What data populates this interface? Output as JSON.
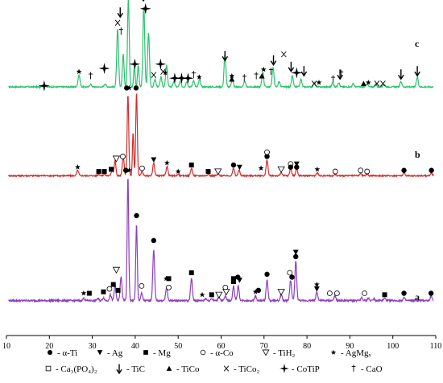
{
  "chart_data": {
    "type": "line",
    "title": "",
    "xlabel": "",
    "ylabel": "",
    "xlim": [
      10,
      110
    ],
    "x_ticks": [
      10,
      20,
      30,
      40,
      50,
      60,
      70,
      80,
      90,
      100,
      110
    ],
    "grid": false,
    "legend_position": "bottom",
    "series": [
      {
        "label": "c",
        "color": "#2bc26e",
        "baseline": 0.2,
        "noise": 0.006,
        "peaks": [
          [
            18.8,
            0.014,
            0.6
          ],
          [
            26.9,
            0.11,
            0.32
          ],
          [
            29.6,
            0.025,
            0.3
          ],
          [
            33.0,
            0.03,
            0.3
          ],
          [
            35.9,
            0.53,
            0.3
          ],
          [
            37.2,
            0.3,
            0.28
          ],
          [
            38.4,
            0.83,
            0.28
          ],
          [
            39.8,
            0.18,
            0.25
          ],
          [
            40.7,
            0.2,
            0.25
          ],
          [
            42.0,
            0.74,
            0.3
          ],
          [
            43.1,
            0.5,
            0.3
          ],
          [
            44.6,
            0.07,
            0.3
          ],
          [
            46.0,
            0.09,
            0.3
          ],
          [
            47.3,
            0.2,
            0.3
          ],
          [
            49.0,
            0.05,
            0.3
          ],
          [
            50.5,
            0.05,
            0.3
          ],
          [
            52.0,
            0.05,
            0.3
          ],
          [
            53.6,
            0.06,
            0.3
          ],
          [
            55.0,
            0.07,
            0.3
          ],
          [
            60.9,
            0.3,
            0.3
          ],
          [
            62.6,
            0.07,
            0.3
          ],
          [
            65.5,
            0.05,
            0.3
          ],
          [
            69.7,
            0.14,
            0.3
          ],
          [
            72.1,
            0.18,
            0.3
          ],
          [
            73.5,
            0.05,
            0.3
          ],
          [
            76.6,
            0.1,
            0.3
          ],
          [
            78.6,
            0.07,
            0.3
          ],
          [
            81.7,
            0.045,
            0.3
          ],
          [
            86.0,
            0.04,
            0.3
          ],
          [
            87.4,
            0.04,
            0.3
          ],
          [
            90.8,
            0.03,
            0.3
          ],
          [
            94.0,
            0.03,
            0.3
          ],
          [
            96.0,
            0.025,
            0.3
          ],
          [
            98.0,
            0.025,
            0.3
          ],
          [
            101.9,
            0.05,
            0.3
          ],
          [
            105.7,
            0.09,
            0.3
          ]
        ],
        "phase_labels": [
          [
            "crossstar",
            18.8,
            0.21
          ],
          [
            "star",
            26.9,
            0.34
          ],
          [
            "dagger",
            29.6,
            0.3
          ],
          [
            "crossstar",
            32.8,
            0.37
          ],
          [
            "X",
            35.9,
            0.79
          ],
          [
            "dagger",
            36.7,
            0.71
          ],
          [
            "arrow",
            36.5,
            0.85
          ],
          [
            "star",
            38.4,
            1.05
          ],
          [
            "crossstar",
            39.9,
            0.41
          ],
          [
            "crossstar",
            41.3,
            1.07
          ],
          [
            "arrow",
            41.9,
            1.0
          ],
          [
            "crossstar",
            42.4,
            0.92
          ],
          [
            "X",
            44.3,
            0.31
          ],
          [
            "crossstar",
            45.9,
            0.41
          ],
          [
            "X",
            46.5,
            0.34
          ],
          [
            "star",
            47.0,
            0.33
          ],
          [
            "crossstar",
            49.2,
            0.28
          ],
          [
            "crossstar",
            50.8,
            0.28
          ],
          [
            "crossstar",
            52.3,
            0.28
          ],
          [
            "dagger",
            53.6,
            0.31
          ],
          [
            "star",
            54.9,
            0.29
          ],
          [
            "arrow",
            60.9,
            0.45
          ],
          [
            "star",
            62.5,
            0.3
          ],
          [
            "triangle",
            62.5,
            0.27
          ],
          [
            "dagger",
            65.4,
            0.28
          ],
          [
            "dagger",
            68.2,
            0.3
          ],
          [
            "triangle",
            69.5,
            0.3
          ],
          [
            "star",
            69.9,
            0.36
          ],
          [
            "dagger",
            71.6,
            0.34
          ],
          [
            "arrow",
            72.2,
            0.41
          ],
          [
            "X",
            74.6,
            0.5
          ],
          [
            "arrow",
            76.3,
            0.35
          ],
          [
            "crossstar",
            77.6,
            0.33
          ],
          [
            "arrow",
            79.3,
            0.31
          ],
          [
            "X",
            81.7,
            0.23
          ],
          [
            "star",
            82.8,
            0.24
          ],
          [
            "dagger",
            86.1,
            0.27
          ],
          [
            "dagger",
            88.0,
            0.32
          ],
          [
            "arrow",
            87.7,
            0.28
          ],
          [
            "triangle",
            93.2,
            0.23
          ],
          [
            "star",
            94.3,
            0.24
          ],
          [
            "X",
            96.3,
            0.23
          ],
          [
            "X",
            97.7,
            0.23
          ],
          [
            "arrow",
            101.9,
            0.28
          ],
          [
            "arrow",
            105.7,
            0.31
          ]
        ]
      },
      {
        "label": "b",
        "color": "#d22c2c",
        "baseline": 0.2,
        "noise": 0.006,
        "peaks": [
          [
            26.6,
            0.05,
            0.32
          ],
          [
            31.5,
            0.015,
            0.3
          ],
          [
            32.8,
            0.015,
            0.3
          ],
          [
            34.6,
            0.05,
            0.3
          ],
          [
            35.3,
            0.14,
            0.28
          ],
          [
            37.2,
            0.18,
            0.3
          ],
          [
            38.3,
            0.76,
            0.26
          ],
          [
            39.5,
            0.4,
            0.22
          ],
          [
            40.3,
            0.78,
            0.26
          ],
          [
            41.6,
            0.04,
            0.3
          ],
          [
            44.3,
            0.12,
            0.3
          ],
          [
            47.4,
            0.09,
            0.3
          ],
          [
            50.0,
            0.015,
            0.3
          ],
          [
            53.1,
            0.07,
            0.3
          ],
          [
            57.0,
            0.015,
            0.3
          ],
          [
            59.3,
            0.015,
            0.3
          ],
          [
            62.9,
            0.07,
            0.3
          ],
          [
            64.2,
            0.05,
            0.3
          ],
          [
            70.7,
            0.15,
            0.3
          ],
          [
            74.0,
            0.03,
            0.3
          ],
          [
            76.2,
            0.07,
            0.3
          ],
          [
            77.6,
            0.07,
            0.3
          ],
          [
            82.4,
            0.03,
            0.3
          ],
          [
            86.6,
            0.015,
            0.3
          ],
          [
            92.5,
            0.02,
            0.3
          ],
          [
            94.0,
            0.015,
            0.3
          ],
          [
            102.6,
            0.025,
            0.3
          ],
          [
            109.0,
            0.025,
            0.3
          ]
        ],
        "phase_labels": [
          [
            "star",
            26.6,
            0.28
          ],
          [
            "square",
            31.5,
            0.24
          ],
          [
            "square",
            32.8,
            0.24
          ],
          [
            "square",
            34.4,
            0.26
          ],
          [
            "tri-down-open",
            35.6,
            0.36
          ],
          [
            "circle-open",
            37.1,
            0.38
          ],
          [
            "circle",
            38.0,
            1.02
          ],
          [
            "star",
            38.6,
            1.02
          ],
          [
            "circle",
            40.2,
            1.02
          ],
          [
            "circle-open",
            41.6,
            0.27
          ],
          [
            "tri-down",
            44.3,
            0.35
          ],
          [
            "star",
            47.4,
            0.32
          ],
          [
            "square",
            53.1,
            0.3
          ],
          [
            "star",
            50.0,
            0.24
          ],
          [
            "square",
            57.0,
            0.24
          ],
          [
            "tri-down-open",
            59.3,
            0.24
          ],
          [
            "circle",
            62.9,
            0.3
          ],
          [
            "tri-down",
            64.3,
            0.28
          ],
          [
            "star",
            69.3,
            0.27
          ],
          [
            "circle",
            70.7,
            0.38
          ],
          [
            "circle-open",
            70.7,
            0.42
          ],
          [
            "tri-down-open",
            74.0,
            0.26
          ],
          [
            "circle-open",
            76.2,
            0.31
          ],
          [
            "circle",
            76.2,
            0.28
          ],
          [
            "tri-down",
            77.6,
            0.31
          ],
          [
            "circle",
            77.6,
            0.28
          ],
          [
            "star",
            82.4,
            0.26
          ],
          [
            "circle-open",
            86.6,
            0.24
          ],
          [
            "circle-open",
            92.5,
            0.25
          ],
          [
            "circle-open",
            94.0,
            0.24
          ],
          [
            "circle",
            102.6,
            0.25
          ],
          [
            "circle",
            109.0,
            0.25
          ]
        ]
      },
      {
        "label": "a",
        "color": "#8a3ec0",
        "baseline": 0.2,
        "noise": 0.006,
        "peaks": [
          [
            28.0,
            0.015,
            0.3
          ],
          [
            31.3,
            0.015,
            0.3
          ],
          [
            32.6,
            0.02,
            0.3
          ],
          [
            34.2,
            0.04,
            0.3
          ],
          [
            35.3,
            0.1,
            0.3
          ],
          [
            36.7,
            0.16,
            0.3
          ],
          [
            38.3,
            0.85,
            0.25
          ],
          [
            40.3,
            0.52,
            0.25
          ],
          [
            41.5,
            0.05,
            0.3
          ],
          [
            44.3,
            0.35,
            0.3
          ],
          [
            47.3,
            0.09,
            0.3
          ],
          [
            53.1,
            0.15,
            0.3
          ],
          [
            56.4,
            0.015,
            0.3
          ],
          [
            57.8,
            0.015,
            0.3
          ],
          [
            59.5,
            0.03,
            0.3
          ],
          [
            61.0,
            0.03,
            0.3
          ],
          [
            62.9,
            0.1,
            0.3
          ],
          [
            64.0,
            0.1,
            0.3
          ],
          [
            68.0,
            0.03,
            0.3
          ],
          [
            70.7,
            0.14,
            0.3
          ],
          [
            74.0,
            0.04,
            0.3
          ],
          [
            76.2,
            0.14,
            0.3
          ],
          [
            77.4,
            0.27,
            0.3
          ],
          [
            82.3,
            0.06,
            0.3
          ],
          [
            86.5,
            0.03,
            0.3
          ],
          [
            92.7,
            0.02,
            0.3
          ],
          [
            94.3,
            0.015,
            0.3
          ],
          [
            95.6,
            0.015,
            0.3
          ],
          [
            98.1,
            0.015,
            0.3
          ],
          [
            102.6,
            0.02,
            0.3
          ],
          [
            108.9,
            0.03,
            0.3
          ]
        ],
        "phase_labels": [
          [
            "star",
            28.0,
            0.25
          ],
          [
            "square",
            29.3,
            0.25
          ],
          [
            "square",
            32.6,
            0.26
          ],
          [
            "circle-open",
            34.0,
            0.28
          ],
          [
            "square",
            34.9,
            0.31
          ],
          [
            "square",
            36.0,
            0.27
          ],
          [
            "tri-down-open",
            35.6,
            0.41
          ],
          [
            "circle",
            37.8,
            1.09
          ],
          [
            "star",
            38.6,
            1.09
          ],
          [
            "circle",
            40.3,
            0.78
          ],
          [
            "circle-open",
            41.5,
            0.3
          ],
          [
            "circle",
            44.3,
            0.61
          ],
          [
            "star",
            47.2,
            0.35
          ],
          [
            "square",
            47.8,
            0.35
          ],
          [
            "circle-open",
            47.8,
            0.29
          ],
          [
            "square",
            53.1,
            0.39
          ],
          [
            "star",
            55.6,
            0.24
          ],
          [
            "square",
            57.8,
            0.24
          ],
          [
            "tri-down-open",
            59.5,
            0.24
          ],
          [
            "circle-open",
            61.0,
            0.29
          ],
          [
            "tri-down-open",
            61.2,
            0.26
          ],
          [
            "square",
            62.9,
            0.35
          ],
          [
            "square",
            62.9,
            0.33
          ],
          [
            "circle",
            63.9,
            0.36
          ],
          [
            "tri-down",
            64.3,
            0.34
          ],
          [
            "star",
            68.0,
            0.26
          ],
          [
            "circle",
            68.7,
            0.27
          ],
          [
            "circle",
            70.7,
            0.38
          ],
          [
            "tri-down-open",
            74.0,
            0.26
          ],
          [
            "circle-open",
            76.0,
            0.39
          ],
          [
            "circle",
            76.5,
            0.36
          ],
          [
            "tri-down",
            77.4,
            0.53
          ],
          [
            "circle",
            77.4,
            0.5
          ],
          [
            "star",
            82.3,
            0.31
          ],
          [
            "tri-down",
            82.3,
            0.28
          ],
          [
            "circle-open",
            85.3,
            0.25
          ],
          [
            "circle-open",
            87.0,
            0.25
          ],
          [
            "circle-open",
            93.4,
            0.25
          ],
          [
            "square",
            98.1,
            0.24
          ],
          [
            "circle",
            102.6,
            0.25
          ],
          [
            "circle",
            108.9,
            0.25
          ]
        ]
      }
    ]
  },
  "legend": {
    "row1": [
      {
        "marker": "circle",
        "text": "- α-Ti"
      },
      {
        "marker": "tri-down",
        "text": "- Ag"
      },
      {
        "marker": "square",
        "text": "- Mg"
      },
      {
        "marker": "circle-open",
        "text": "- α-Co"
      },
      {
        "marker": "tri-down-open",
        "text": "- TiH₂"
      },
      {
        "marker": "star",
        "text": "- AgMgₓ"
      }
    ],
    "row2": [
      {
        "marker": "square-open",
        "text": "- Ca₃(PO₄)₂"
      },
      {
        "marker": "arrow",
        "text": "- TiC"
      },
      {
        "marker": "triangle",
        "text": "- TiCo"
      },
      {
        "marker": "X",
        "text": "- TiCo₂"
      },
      {
        "marker": "crossstar",
        "text": "- CoTiP"
      },
      {
        "marker": "dagger",
        "text": "- CaO"
      }
    ]
  }
}
